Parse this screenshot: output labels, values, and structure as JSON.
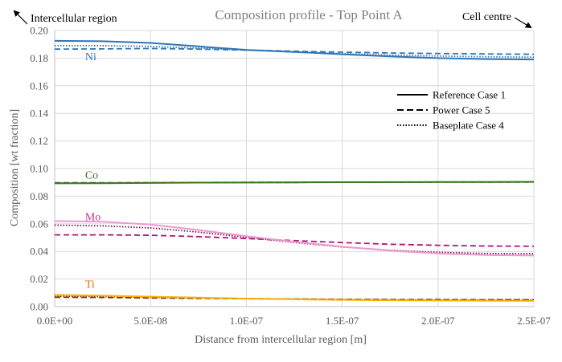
{
  "chart_data": {
    "type": "line",
    "title": "Composition profile - Top Point A",
    "xlabel": "Distance from intercellular region [m]",
    "ylabel": "Composition [wt fraction]",
    "xlim": [
      0,
      2.5e-07
    ],
    "ylim": [
      0,
      0.2
    ],
    "xticks": [
      0,
      5e-08,
      1e-07,
      1.5e-07,
      2e-07,
      2.5e-07
    ],
    "xtick_labels": [
      "0.0E+00",
      "5.0E-08",
      "1.0E-07",
      "1.5E-07",
      "2.0E-07",
      "2.5E-07"
    ],
    "yticks": [
      0,
      0.02,
      0.04,
      0.06,
      0.08,
      0.1,
      0.12,
      0.14,
      0.16,
      0.18,
      0.2
    ],
    "ytick_labels": [
      "0.00",
      "0.02",
      "0.04",
      "0.06",
      "0.08",
      "0.10",
      "0.12",
      "0.14",
      "0.16",
      "0.18",
      "0.20"
    ],
    "grid": true,
    "legend_position": "right",
    "annotations": {
      "left": "Intercellular region",
      "right": "Cell centre"
    },
    "legend": [
      {
        "label": "Reference Case 1",
        "style": "solid"
      },
      {
        "label": "Power Case 5",
        "style": "dashed"
      },
      {
        "label": "Baseplate Case 4",
        "style": "dotted"
      }
    ],
    "elements": [
      {
        "label": "Ni",
        "color": "#2e75b6",
        "label_at": [
          1e-08,
          0.1815
        ]
      },
      {
        "label": "Co",
        "color": "#38761d",
        "label_at": [
          1e-08,
          0.0955
        ]
      },
      {
        "label": "Mo",
        "color": "#c0338a",
        "label_at": [
          1e-08,
          0.0655
        ]
      },
      {
        "label": "Ti",
        "color": "#e06c00",
        "label_at": [
          1e-08,
          0.0165
        ]
      }
    ],
    "series": [
      {
        "element": "Ni",
        "case": "Reference Case 1",
        "style": "solid",
        "color": "#2e75b6",
        "x": [
          0,
          2.5e-08,
          5e-08,
          7.5e-08,
          1e-07,
          1.25e-07,
          1.5e-07,
          1.75e-07,
          2e-07,
          2.25e-07,
          2.5e-07
        ],
        "y": [
          0.1925,
          0.1922,
          0.191,
          0.1885,
          0.186,
          0.1845,
          0.1828,
          0.1812,
          0.18,
          0.1793,
          0.179
        ]
      },
      {
        "element": "Ni",
        "case": "Power Case 5",
        "style": "dashed",
        "color": "#2e75b6",
        "x": [
          0,
          2.5e-08,
          5e-08,
          7.5e-08,
          1e-07,
          1.25e-07,
          1.5e-07,
          1.75e-07,
          2e-07,
          2.25e-07,
          2.5e-07
        ],
        "y": [
          0.1865,
          0.1867,
          0.187,
          0.1865,
          0.1858,
          0.185,
          0.1843,
          0.1837,
          0.1833,
          0.183,
          0.1828
        ]
      },
      {
        "element": "Ni",
        "case": "Baseplate Case 4",
        "style": "dotted",
        "color": "#2e75b6",
        "x": [
          0,
          2.5e-08,
          5e-08,
          7.5e-08,
          1e-07,
          1.25e-07,
          1.5e-07,
          1.75e-07,
          2e-07,
          2.25e-07,
          2.5e-07
        ],
        "y": [
          0.189,
          0.189,
          0.1885,
          0.1872,
          0.1858,
          0.1845,
          0.1832,
          0.1822,
          0.1815,
          0.181,
          0.1807
        ]
      },
      {
        "element": "Co",
        "case": "Reference Case 1",
        "style": "solid",
        "color": "#38761d",
        "x": [
          0,
          2.5e-08,
          5e-08,
          7.5e-08,
          1e-07,
          1.25e-07,
          1.5e-07,
          1.75e-07,
          2e-07,
          2.25e-07,
          2.5e-07
        ],
        "y": [
          0.0893,
          0.0894,
          0.0896,
          0.0898,
          0.0899,
          0.09,
          0.0901,
          0.0902,
          0.0903,
          0.0903,
          0.0904
        ]
      },
      {
        "element": "Co",
        "case": "Power Case 5",
        "style": "dashed",
        "color": "#38761d",
        "x": [
          0,
          2.5e-08,
          5e-08,
          7.5e-08,
          1e-07,
          1.25e-07,
          1.5e-07,
          1.75e-07,
          2e-07,
          2.25e-07,
          2.5e-07
        ],
        "y": [
          0.0897,
          0.0897,
          0.0898,
          0.0899,
          0.09,
          0.09,
          0.0901,
          0.0901,
          0.0902,
          0.0902,
          0.0902
        ]
      },
      {
        "element": "Co",
        "case": "Baseplate Case 4",
        "style": "dotted",
        "color": "#38761d",
        "x": [
          0,
          2.5e-08,
          5e-08,
          7.5e-08,
          1e-07,
          1.25e-07,
          1.5e-07,
          1.75e-07,
          2e-07,
          2.25e-07,
          2.5e-07
        ],
        "y": [
          0.0895,
          0.0896,
          0.0897,
          0.0898,
          0.0899,
          0.09,
          0.0901,
          0.0902,
          0.0903,
          0.0903,
          0.0903
        ]
      },
      {
        "element": "Mo",
        "case": "Reference Case 1",
        "style": "solid",
        "color": "#e99bd0",
        "x": [
          0,
          2.5e-08,
          5e-08,
          7.5e-08,
          1e-07,
          1.25e-07,
          1.5e-07,
          1.75e-07,
          2e-07,
          2.25e-07,
          2.5e-07
        ],
        "y": [
          0.062,
          0.0615,
          0.0595,
          0.0555,
          0.051,
          0.047,
          0.0435,
          0.0405,
          0.0385,
          0.0373,
          0.037
        ]
      },
      {
        "element": "Mo",
        "case": "Power Case 5",
        "style": "dashed",
        "color": "#b0157a",
        "x": [
          0,
          2.5e-08,
          5e-08,
          7.5e-08,
          1e-07,
          1.25e-07,
          1.5e-07,
          1.75e-07,
          2e-07,
          2.25e-07,
          2.5e-07
        ],
        "y": [
          0.052,
          0.052,
          0.0517,
          0.0507,
          0.0493,
          0.0478,
          0.0464,
          0.0452,
          0.0444,
          0.0439,
          0.0437
        ]
      },
      {
        "element": "Mo",
        "case": "Baseplate Case 4",
        "style": "dotted",
        "color": "#7a1050",
        "x": [
          0,
          2.5e-08,
          5e-08,
          7.5e-08,
          1e-07,
          1.25e-07,
          1.5e-07,
          1.75e-07,
          2e-07,
          2.25e-07,
          2.5e-07
        ],
        "y": [
          0.059,
          0.0585,
          0.057,
          0.054,
          0.0502,
          0.0465,
          0.0432,
          0.0408,
          0.0393,
          0.0385,
          0.0383
        ]
      },
      {
        "element": "Ti",
        "case": "Reference Case 1",
        "style": "solid",
        "color": "#f4b400",
        "x": [
          0,
          2.5e-08,
          5e-08,
          7.5e-08,
          1e-07,
          1.25e-07,
          1.5e-07,
          1.75e-07,
          2e-07,
          2.25e-07,
          2.5e-07
        ],
        "y": [
          0.0085,
          0.008,
          0.0072,
          0.0065,
          0.0058,
          0.0053,
          0.0049,
          0.0046,
          0.0044,
          0.0043,
          0.0042
        ]
      },
      {
        "element": "Ti",
        "case": "Power Case 5",
        "style": "dashed",
        "color": "#8b2e00",
        "x": [
          0,
          2.5e-08,
          5e-08,
          7.5e-08,
          1e-07,
          1.25e-07,
          1.5e-07,
          1.75e-07,
          2e-07,
          2.25e-07,
          2.5e-07
        ],
        "y": [
          0.0068,
          0.0066,
          0.0063,
          0.006,
          0.0057,
          0.0055,
          0.0053,
          0.0052,
          0.0051,
          0.005,
          0.005
        ]
      },
      {
        "element": "Ti",
        "case": "Baseplate Case 4",
        "style": "dotted",
        "color": "#7a2500",
        "x": [
          0,
          2.5e-08,
          5e-08,
          7.5e-08,
          1e-07,
          1.25e-07,
          1.5e-07,
          1.75e-07,
          2e-07,
          2.25e-07,
          2.5e-07
        ],
        "y": [
          0.0075,
          0.0072,
          0.0067,
          0.0062,
          0.0058,
          0.0055,
          0.0052,
          0.005,
          0.0049,
          0.0048,
          0.0048
        ]
      }
    ]
  }
}
